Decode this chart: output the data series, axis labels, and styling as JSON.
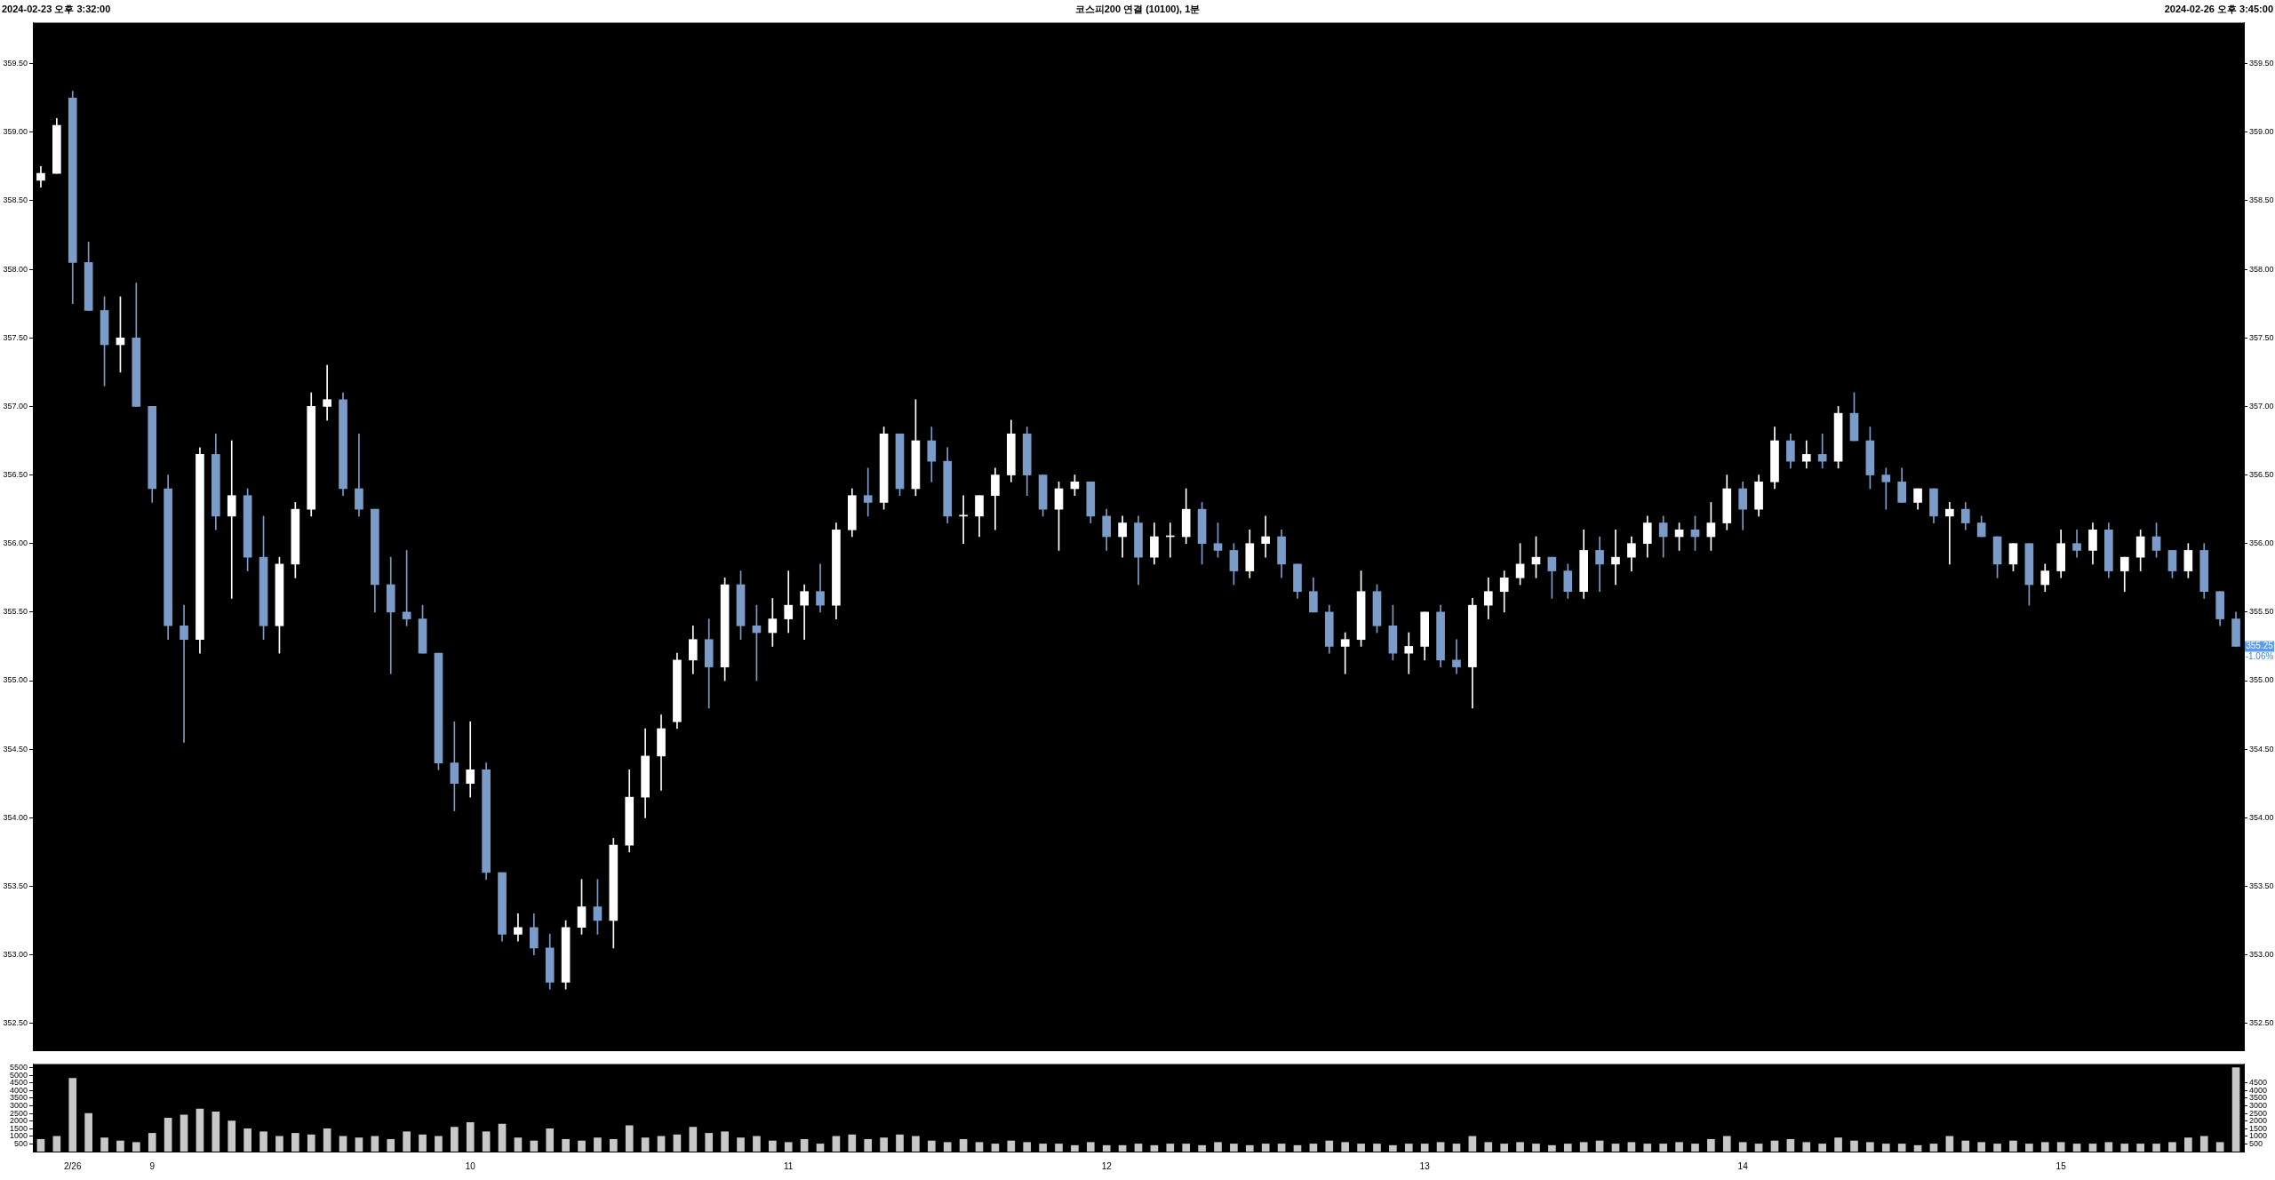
{
  "chart_data": [
    {
      "type": "candlestick",
      "title": "코스피200 연결 (10100), 1분",
      "annotations": [
        "2024-02-23 오후 3:32:00",
        "2024-02-26 오후 3:45:00",
        {
          "text": "355.25",
          "y": 355.25
        },
        "-1.06%"
      ],
      "categories": [
        null,
        null,
        null,
        null,
        null,
        null,
        null,
        null,
        null,
        null,
        null,
        null,
        null,
        null,
        null,
        null,
        null,
        null,
        null,
        null,
        null,
        null,
        null,
        null,
        null,
        null,
        null,
        null,
        null,
        null,
        null,
        null,
        null,
        null,
        null,
        null,
        null,
        null,
        null,
        null,
        null,
        null,
        null,
        null,
        null,
        null,
        null,
        null,
        null,
        null,
        null,
        null,
        null,
        null,
        null,
        null,
        null,
        null,
        null,
        null,
        null,
        null,
        null,
        null,
        null,
        null,
        null,
        null,
        null,
        null,
        null,
        null,
        null,
        null,
        null,
        null,
        null,
        null,
        null,
        null,
        null,
        null,
        null,
        null,
        null,
        null,
        null,
        null,
        null,
        null,
        null,
        null,
        null,
        null,
        null,
        null,
        null,
        null,
        null,
        null,
        null,
        null,
        null,
        null,
        null,
        null,
        null,
        null,
        null,
        null,
        null,
        null,
        null,
        null,
        null,
        null,
        null,
        null,
        null,
        null,
        null,
        null,
        null,
        null,
        null,
        null,
        null,
        null,
        null,
        null,
        null,
        null,
        null,
        null,
        null,
        null,
        null,
        null,
        null
      ],
      "ohlc": [
        [
          358.65,
          358.75,
          358.6,
          358.7
        ],
        [
          358.7,
          359.1,
          358.7,
          359.05
        ],
        [
          359.25,
          359.3,
          357.75,
          358.05
        ],
        [
          358.05,
          358.2,
          357.7,
          357.7
        ],
        [
          357.7,
          357.8,
          357.15,
          357.45
        ],
        [
          357.45,
          357.8,
          357.25,
          357.5
        ],
        [
          357.5,
          357.9,
          357.0,
          357.0
        ],
        [
          357.0,
          357.0,
          356.3,
          356.4
        ],
        [
          356.4,
          356.5,
          355.3,
          355.4
        ],
        [
          355.4,
          355.55,
          354.55,
          355.3
        ],
        [
          355.3,
          356.7,
          355.2,
          356.65
        ],
        [
          356.65,
          356.8,
          356.1,
          356.2
        ],
        [
          356.2,
          356.75,
          355.6,
          356.35
        ],
        [
          356.35,
          356.4,
          355.8,
          355.9
        ],
        [
          355.9,
          356.2,
          355.3,
          355.4
        ],
        [
          355.4,
          355.9,
          355.2,
          355.85
        ],
        [
          355.85,
          356.3,
          355.75,
          356.25
        ],
        [
          356.25,
          357.1,
          356.2,
          357.0
        ],
        [
          357.0,
          357.3,
          356.9,
          357.05
        ],
        [
          357.05,
          357.1,
          356.35,
          356.4
        ],
        [
          356.4,
          356.8,
          356.2,
          356.25
        ],
        [
          356.25,
          356.25,
          355.5,
          355.7
        ],
        [
          355.7,
          355.9,
          355.05,
          355.5
        ],
        [
          355.5,
          355.95,
          355.4,
          355.45
        ],
        [
          355.45,
          355.55,
          355.2,
          355.2
        ],
        [
          355.2,
          355.2,
          354.35,
          354.4
        ],
        [
          354.4,
          354.7,
          354.05,
          354.25
        ],
        [
          354.25,
          354.7,
          354.15,
          354.35
        ],
        [
          354.35,
          354.4,
          353.55,
          353.6
        ],
        [
          353.6,
          353.6,
          353.1,
          353.15
        ],
        [
          353.15,
          353.3,
          353.1,
          353.2
        ],
        [
          353.2,
          353.3,
          353.0,
          353.05
        ],
        [
          353.05,
          353.15,
          352.75,
          352.8
        ],
        [
          352.8,
          353.25,
          352.75,
          353.2
        ],
        [
          353.2,
          353.55,
          353.15,
          353.35
        ],
        [
          353.35,
          353.55,
          353.15,
          353.25
        ],
        [
          353.25,
          353.85,
          353.05,
          353.8
        ],
        [
          353.8,
          354.35,
          353.75,
          354.15
        ],
        [
          354.15,
          354.65,
          354.0,
          354.45
        ],
        [
          354.45,
          354.75,
          354.2,
          354.65
        ],
        [
          354.7,
          355.2,
          354.65,
          355.15
        ],
        [
          355.15,
          355.4,
          355.05,
          355.3
        ],
        [
          355.3,
          355.45,
          354.8,
          355.1
        ],
        [
          355.1,
          355.75,
          355.0,
          355.7
        ],
        [
          355.7,
          355.8,
          355.3,
          355.4
        ],
        [
          355.4,
          355.55,
          355.0,
          355.35
        ],
        [
          355.35,
          355.6,
          355.25,
          355.45
        ],
        [
          355.45,
          355.8,
          355.35,
          355.55
        ],
        [
          355.55,
          355.7,
          355.3,
          355.65
        ],
        [
          355.65,
          355.85,
          355.5,
          355.55
        ],
        [
          355.55,
          356.15,
          355.45,
          356.1
        ],
        [
          356.1,
          356.4,
          356.05,
          356.35
        ],
        [
          356.35,
          356.55,
          356.2,
          356.3
        ],
        [
          356.3,
          356.85,
          356.25,
          356.8
        ],
        [
          356.8,
          356.8,
          356.35,
          356.4
        ],
        [
          356.4,
          357.05,
          356.35,
          356.75
        ],
        [
          356.75,
          356.85,
          356.45,
          356.6
        ],
        [
          356.6,
          356.7,
          356.15,
          356.2
        ],
        [
          356.2,
          356.35,
          356.0,
          356.2
        ],
        [
          356.2,
          356.35,
          356.05,
          356.35
        ],
        [
          356.35,
          356.55,
          356.1,
          356.5
        ],
        [
          356.5,
          356.9,
          356.45,
          356.8
        ],
        [
          356.8,
          356.85,
          356.35,
          356.5
        ],
        [
          356.5,
          356.5,
          356.2,
          356.25
        ],
        [
          356.25,
          356.45,
          355.95,
          356.4
        ],
        [
          356.4,
          356.5,
          356.35,
          356.45
        ],
        [
          356.45,
          356.45,
          356.15,
          356.2
        ],
        [
          356.2,
          356.25,
          355.95,
          356.05
        ],
        [
          356.05,
          356.2,
          355.9,
          356.15
        ],
        [
          356.15,
          356.2,
          355.7,
          355.9
        ],
        [
          355.9,
          356.15,
          355.85,
          356.05
        ],
        [
          356.05,
          356.15,
          355.9,
          356.05
        ],
        [
          356.05,
          356.4,
          356.0,
          356.25
        ],
        [
          356.25,
          356.3,
          355.85,
          356.0
        ],
        [
          356.0,
          356.15,
          355.9,
          355.95
        ],
        [
          355.95,
          356.0,
          355.7,
          355.8
        ],
        [
          355.8,
          356.1,
          355.75,
          356.0
        ],
        [
          356.0,
          356.2,
          355.9,
          356.05
        ],
        [
          356.05,
          356.1,
          355.75,
          355.85
        ],
        [
          355.85,
          355.85,
          355.6,
          355.65
        ],
        [
          355.65,
          355.75,
          355.5,
          355.5
        ],
        [
          355.5,
          355.55,
          355.2,
          355.25
        ],
        [
          355.25,
          355.35,
          355.05,
          355.3
        ],
        [
          355.3,
          355.8,
          355.25,
          355.65
        ],
        [
          355.65,
          355.7,
          355.35,
          355.4
        ],
        [
          355.4,
          355.55,
          355.15,
          355.2
        ],
        [
          355.2,
          355.35,
          355.05,
          355.25
        ],
        [
          355.25,
          355.5,
          355.15,
          355.5
        ],
        [
          355.5,
          355.55,
          355.1,
          355.15
        ],
        [
          355.15,
          355.3,
          355.05,
          355.1
        ],
        [
          355.1,
          355.6,
          354.8,
          355.55
        ],
        [
          355.55,
          355.75,
          355.45,
          355.65
        ],
        [
          355.65,
          355.8,
          355.5,
          355.75
        ],
        [
          355.75,
          356.0,
          355.7,
          355.85
        ],
        [
          355.85,
          356.05,
          355.75,
          355.9
        ],
        [
          355.9,
          355.9,
          355.6,
          355.8
        ],
        [
          355.8,
          355.85,
          355.6,
          355.65
        ],
        [
          355.65,
          356.1,
          355.6,
          355.95
        ],
        [
          355.95,
          356.05,
          355.65,
          355.85
        ],
        [
          355.85,
          356.1,
          355.7,
          355.9
        ],
        [
          355.9,
          356.05,
          355.8,
          356.0
        ],
        [
          356.0,
          356.2,
          355.9,
          356.15
        ],
        [
          356.15,
          356.2,
          355.9,
          356.05
        ],
        [
          356.05,
          356.15,
          355.95,
          356.1
        ],
        [
          356.1,
          356.2,
          355.95,
          356.05
        ],
        [
          356.05,
          356.3,
          355.95,
          356.15
        ],
        [
          356.15,
          356.5,
          356.1,
          356.4
        ],
        [
          356.4,
          356.45,
          356.1,
          356.25
        ],
        [
          356.25,
          356.5,
          356.2,
          356.45
        ],
        [
          356.45,
          356.85,
          356.4,
          356.75
        ],
        [
          356.75,
          356.8,
          356.55,
          356.6
        ],
        [
          356.6,
          356.75,
          356.55,
          356.65
        ],
        [
          356.65,
          356.8,
          356.55,
          356.6
        ],
        [
          356.6,
          357.0,
          356.55,
          356.95
        ],
        [
          356.95,
          357.1,
          356.75,
          356.75
        ],
        [
          356.75,
          356.85,
          356.4,
          356.5
        ],
        [
          356.5,
          356.55,
          356.25,
          356.45
        ],
        [
          356.45,
          356.55,
          356.3,
          356.3
        ],
        [
          356.3,
          356.4,
          356.25,
          356.4
        ],
        [
          356.4,
          356.4,
          356.15,
          356.2
        ],
        [
          356.2,
          356.3,
          355.85,
          356.25
        ],
        [
          356.25,
          356.3,
          356.1,
          356.15
        ],
        [
          356.15,
          356.2,
          356.05,
          356.05
        ],
        [
          356.05,
          356.05,
          355.75,
          355.85
        ],
        [
          355.85,
          356.0,
          355.8,
          356.0
        ],
        [
          356.0,
          356.0,
          355.55,
          355.7
        ],
        [
          355.7,
          355.85,
          355.65,
          355.8
        ],
        [
          355.8,
          356.1,
          355.75,
          356.0
        ],
        [
          356.0,
          356.1,
          355.9,
          355.95
        ],
        [
          355.95,
          356.15,
          355.85,
          356.1
        ],
        [
          356.1,
          356.15,
          355.75,
          355.8
        ],
        [
          355.8,
          355.9,
          355.65,
          355.9
        ],
        [
          355.9,
          356.1,
          355.8,
          356.05
        ],
        [
          356.05,
          356.15,
          355.9,
          355.95
        ],
        [
          355.95,
          355.95,
          355.75,
          355.8
        ],
        [
          355.8,
          356.0,
          355.75,
          355.95
        ],
        [
          355.95,
          356.0,
          355.6,
          355.65
        ],
        [
          355.65,
          355.65,
          355.4,
          355.45
        ],
        [
          355.45,
          355.5,
          355.25,
          355.25
        ]
      ],
      "colors": [
        "#ffffff",
        "#ffffff",
        "#7b9cc8",
        "#7b9cc8",
        "#7b9cc8",
        "#ffffff",
        "#7b9cc8",
        "#7b9cc8",
        "#7b9cc8",
        "#7b9cc8",
        "#ffffff",
        "#7b9cc8",
        "#ffffff",
        "#7b9cc8",
        "#7b9cc8",
        "#ffffff",
        "#ffffff",
        "#ffffff",
        "#ffffff",
        "#7b9cc8",
        "#7b9cc8",
        "#7b9cc8",
        "#7b9cc8",
        "#7b9cc8",
        "#7b9cc8",
        "#7b9cc8",
        "#7b9cc8",
        "#ffffff",
        "#7b9cc8",
        "#7b9cc8",
        "#ffffff",
        "#7b9cc8",
        "#7b9cc8",
        "#ffffff",
        "#ffffff",
        "#7b9cc8",
        "#ffffff",
        "#ffffff",
        "#ffffff",
        "#ffffff",
        "#ffffff",
        "#ffffff",
        "#7b9cc8",
        "#ffffff",
        "#7b9cc8",
        "#7b9cc8",
        "#ffffff",
        "#ffffff",
        "#ffffff",
        "#7b9cc8",
        "#ffffff",
        "#ffffff",
        "#7b9cc8",
        "#ffffff",
        "#7b9cc8",
        "#ffffff",
        "#7b9cc8",
        "#7b9cc8",
        "#ffffff",
        "#ffffff",
        "#ffffff",
        "#ffffff",
        "#7b9cc8",
        "#7b9cc8",
        "#ffffff",
        "#ffffff",
        "#7b9cc8",
        "#7b9cc8",
        "#ffffff",
        "#7b9cc8",
        "#ffffff",
        "#ffffff",
        "#ffffff",
        "#7b9cc8",
        "#7b9cc8",
        "#7b9cc8",
        "#ffffff",
        "#ffffff",
        "#7b9cc8",
        "#7b9cc8",
        "#7b9cc8",
        "#7b9cc8",
        "#ffffff",
        "#ffffff",
        "#7b9cc8",
        "#7b9cc8",
        "#ffffff",
        "#ffffff",
        "#7b9cc8",
        "#7b9cc8",
        "#ffffff",
        "#ffffff",
        "#ffffff",
        "#ffffff",
        "#ffffff",
        "#7b9cc8",
        "#7b9cc8",
        "#ffffff",
        "#7b9cc8",
        "#ffffff",
        "#ffffff",
        "#ffffff",
        "#7b9cc8",
        "#ffffff",
        "#7b9cc8",
        "#ffffff",
        "#ffffff",
        "#7b9cc8",
        "#ffffff",
        "#ffffff",
        "#7b9cc8",
        "#ffffff",
        "#7b9cc8",
        "#ffffff",
        "#7b9cc8",
        "#7b9cc8",
        "#7b9cc8",
        "#7b9cc8",
        "#ffffff",
        "#7b9cc8",
        "#ffffff",
        "#7b9cc8",
        "#7b9cc8",
        "#7b9cc8",
        "#ffffff",
        "#7b9cc8",
        "#ffffff",
        "#ffffff",
        "#7b9cc8",
        "#ffffff",
        "#7b9cc8",
        "#ffffff",
        "#ffffff",
        "#7b9cc8",
        "#7b9cc8",
        "#ffffff",
        "#7b9cc8",
        "#7b9cc8",
        "#7b9cc8"
      ],
      "ylim": [
        352.3,
        359.8
      ],
      "yticks": [
        {
          "value": 352.5,
          "label": "352.50"
        },
        {
          "value": 353,
          "label": "353.00"
        },
        {
          "value": 353.5,
          "label": "353.50"
        },
        {
          "value": 354,
          "label": "354.00"
        },
        {
          "value": 354.5,
          "label": "354.50"
        },
        {
          "value": 355,
          "label": "355.00"
        },
        {
          "value": 355.5,
          "label": "355.50"
        },
        {
          "value": 356,
          "label": "356.00"
        },
        {
          "value": 356.5,
          "label": "356.50"
        },
        {
          "value": 357,
          "label": "357.00"
        },
        {
          "value": 357.5,
          "label": "357.50"
        },
        {
          "value": 358,
          "label": "358.00"
        },
        {
          "value": 358.5,
          "label": "358.50"
        },
        {
          "value": 359,
          "label": "359.00"
        },
        {
          "value": 359.5,
          "label": "359.50"
        }
      ],
      "y2lim": [
        352.3,
        359.8
      ],
      "y2ticks": [
        {
          "value": 352.5,
          "label": "352.50"
        },
        {
          "value": 353,
          "label": "353.00"
        },
        {
          "value": 353.5,
          "label": "353.50"
        },
        {
          "value": 354,
          "label": "354.00"
        },
        {
          "value": 354.5,
          "label": "354.50"
        },
        {
          "value": 355,
          "label": "355.00"
        },
        {
          "value": 355.5,
          "label": "355.50"
        },
        {
          "value": 356,
          "label": "356.00"
        },
        {
          "value": 356.5,
          "label": "356.50"
        },
        {
          "value": 357,
          "label": "357.00"
        },
        {
          "value": 357.5,
          "label": "357.50"
        },
        {
          "value": 358,
          "label": "358.00"
        },
        {
          "value": 358.5,
          "label": "358.50"
        },
        {
          "value": 359,
          "label": "359.00"
        },
        {
          "value": 359.5,
          "label": "359.50"
        }
      ],
      "tick_labels": "y"
    },
    {
      "type": "bar",
      "categories": [
        null,
        null,
        "2/26",
        null,
        null,
        null,
        null,
        "9",
        null,
        null,
        null,
        null,
        null,
        null,
        null,
        null,
        null,
        null,
        null,
        null,
        null,
        null,
        null,
        null,
        null,
        null,
        null,
        "10",
        null,
        null,
        null,
        null,
        null,
        null,
        null,
        null,
        null,
        null,
        null,
        null,
        null,
        null,
        null,
        null,
        null,
        null,
        null,
        "11",
        null,
        null,
        null,
        null,
        null,
        null,
        null,
        null,
        null,
        null,
        null,
        null,
        null,
        null,
        null,
        null,
        null,
        null,
        null,
        "12",
        null,
        null,
        null,
        null,
        null,
        null,
        null,
        null,
        null,
        null,
        null,
        null,
        null,
        null,
        null,
        null,
        null,
        null,
        null,
        "13",
        null,
        null,
        null,
        null,
        null,
        null,
        null,
        null,
        null,
        null,
        null,
        null,
        null,
        null,
        null,
        null,
        null,
        null,
        null,
        "14",
        null,
        null,
        null,
        null,
        null,
        null,
        null,
        null,
        null,
        null,
        null,
        null,
        null,
        null,
        null,
        null,
        null,
        null,
        null,
        "15",
        null,
        null,
        null,
        null,
        null,
        null,
        null,
        null,
        null,
        null,
        null
      ],
      "values": [
        800,
        1000,
        4800,
        2500,
        900,
        700,
        600,
        1200,
        2200,
        2400,
        2800,
        2600,
        2000,
        1500,
        1300,
        1000,
        1200,
        1100,
        1500,
        1000,
        900,
        1000,
        800,
        1300,
        1100,
        1000,
        1600,
        1900,
        1300,
        1800,
        900,
        700,
        1500,
        800,
        700,
        900,
        800,
        1700,
        900,
        1000,
        1100,
        1600,
        1200,
        1300,
        900,
        1000,
        700,
        600,
        800,
        500,
        1000,
        1100,
        800,
        900,
        1100,
        1000,
        700,
        600,
        800,
        600,
        500,
        700,
        600,
        500,
        500,
        400,
        600,
        400,
        400,
        500,
        400,
        500,
        500,
        400,
        600,
        500,
        400,
        500,
        500,
        400,
        500,
        700,
        600,
        500,
        500,
        400,
        500,
        500,
        600,
        500,
        1000,
        600,
        500,
        600,
        500,
        400,
        500,
        600,
        700,
        500,
        600,
        500,
        500,
        600,
        500,
        800,
        1000,
        600,
        500,
        700,
        800,
        600,
        500,
        900,
        700,
        600,
        500,
        500,
        400,
        500,
        1000,
        700,
        600,
        500,
        700,
        500,
        600,
        600,
        500,
        500,
        600,
        500,
        500,
        500,
        600,
        900,
        1000,
        600,
        5500
      ],
      "color": "#c8c8c8",
      "ylim": [
        0,
        5750
      ],
      "yticks": [
        500,
        1000,
        1500,
        2000,
        2500,
        3000,
        3500,
        4000,
        4500,
        5000,
        5500
      ],
      "y2lim": [
        0,
        5750
      ],
      "y2ticks": [
        500,
        1000,
        1500,
        2000,
        2500,
        3000,
        3500,
        4000,
        4500
      ]
    }
  ]
}
